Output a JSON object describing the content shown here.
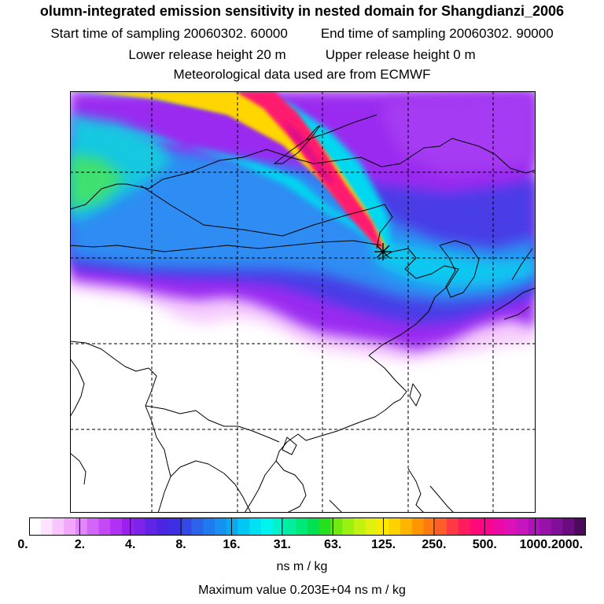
{
  "header": {
    "title": "olumn-integrated emission sensitivity in nested domain for Shangdianzi_2006",
    "start_time": "Start time of sampling 20060302. 60000",
    "end_time": "End time of sampling 20060302. 90000",
    "lower_height": "Lower release height   20 m",
    "upper_height": "Upper release height    0 m",
    "met_data": "Meteorological data used are from ECMWF"
  },
  "colorbar": {
    "tick_labels": [
      "0.",
      "2.",
      "4.",
      "8.",
      "16.",
      "31.",
      "63.",
      "125.",
      "250.",
      "500.",
      "1000.",
      "2000."
    ],
    "colors": [
      "#ffffff",
      "#fde3fe",
      "#f8c6fd",
      "#f2a7fc",
      "#e486fb",
      "#d365f8",
      "#c548f4",
      "#b031f3",
      "#9a20f0",
      "#7d23ea",
      "#5f24e6",
      "#4a25e2",
      "#3e2fe4",
      "#3448e6",
      "#2d62ea",
      "#1f7aee",
      "#1592f0",
      "#0aaaf2",
      "#00c8f4",
      "#00e1f4",
      "#00f4ee",
      "#00f2c8",
      "#00ee9e",
      "#00e878",
      "#00e050",
      "#24e020",
      "#72ea10",
      "#9af010",
      "#c4f210",
      "#e2f010",
      "#fbea00",
      "#ffd200",
      "#ffb400",
      "#ff9600",
      "#ff7a10",
      "#ff5e28",
      "#ff3a44",
      "#ff1c5e",
      "#ff0a78",
      "#f8068e",
      "#ec0aa4",
      "#dc12b6",
      "#c614be",
      "#ae12b8",
      "#9812aa",
      "#801098",
      "#6a0c80",
      "#4c0a5c"
    ],
    "units": "ns m / kg",
    "scale": "logarithmic"
  },
  "footer": {
    "max_value": "Maximum value  0.203E+04 ns m / kg"
  },
  "map": {
    "receptor": "Shangdianzi",
    "grid": "dashed",
    "palette": {
      "high": "#ff1a6e",
      "mid": "#ffd800",
      "cyan": "#00d8f0",
      "blue": "#1a8cf0",
      "indigo": "#4a3ce8",
      "violet": "#8a2cf0",
      "pink": "#e080fb"
    }
  }
}
